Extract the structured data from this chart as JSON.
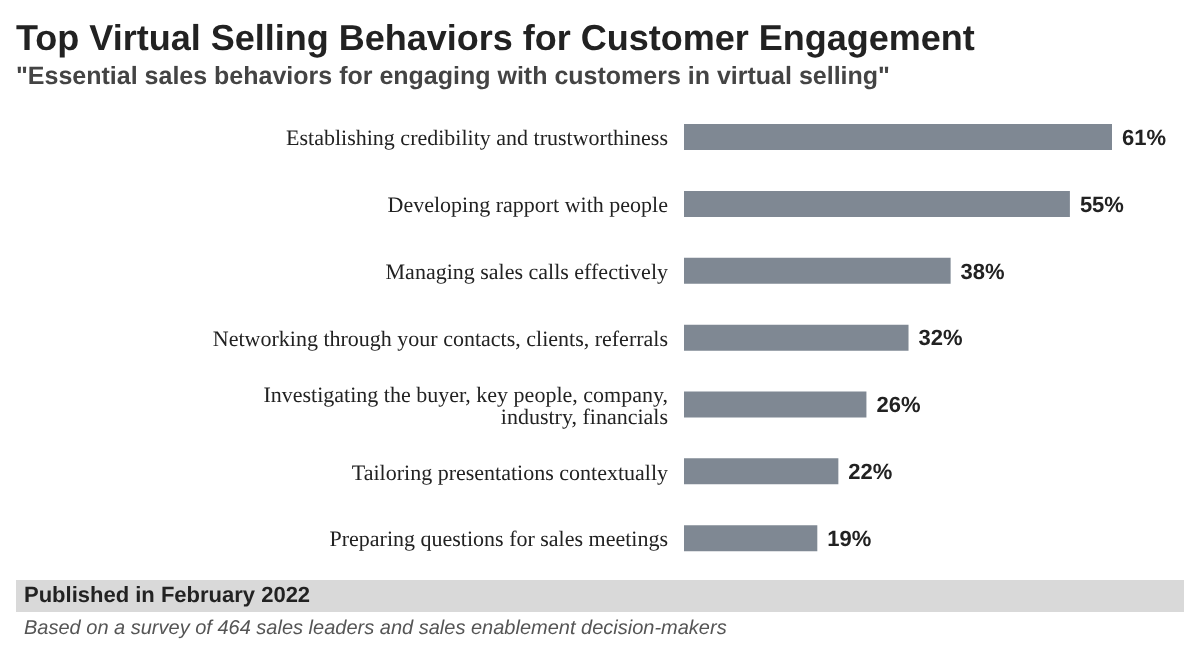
{
  "chart_data": {
    "type": "bar",
    "orientation": "horizontal",
    "title": "Top Virtual Selling Behaviors for Customer Engagement",
    "subtitle": "\"Essential sales behaviors for engaging with customers in virtual selling\"",
    "categories": [
      "Establishing credibility and trustworthiness",
      "Developing rapport with people",
      "Managing sales calls effectively",
      "Networking through your contacts, clients, referrals",
      "Investigating the buyer, key people, company, industry, financials",
      "Tailoring presentations contextually",
      "Preparing questions for sales meetings"
    ],
    "values": [
      61,
      55,
      38,
      32,
      26,
      22,
      19
    ],
    "value_labels": [
      "61%",
      "55%",
      "38%",
      "32%",
      "26%",
      "22%",
      "19%"
    ],
    "color": "#7f8893",
    "annotations": [
      "Published in February 2022",
      "Based on a survey of 464 sales leaders and sales enablement decision-makers"
    ]
  }
}
